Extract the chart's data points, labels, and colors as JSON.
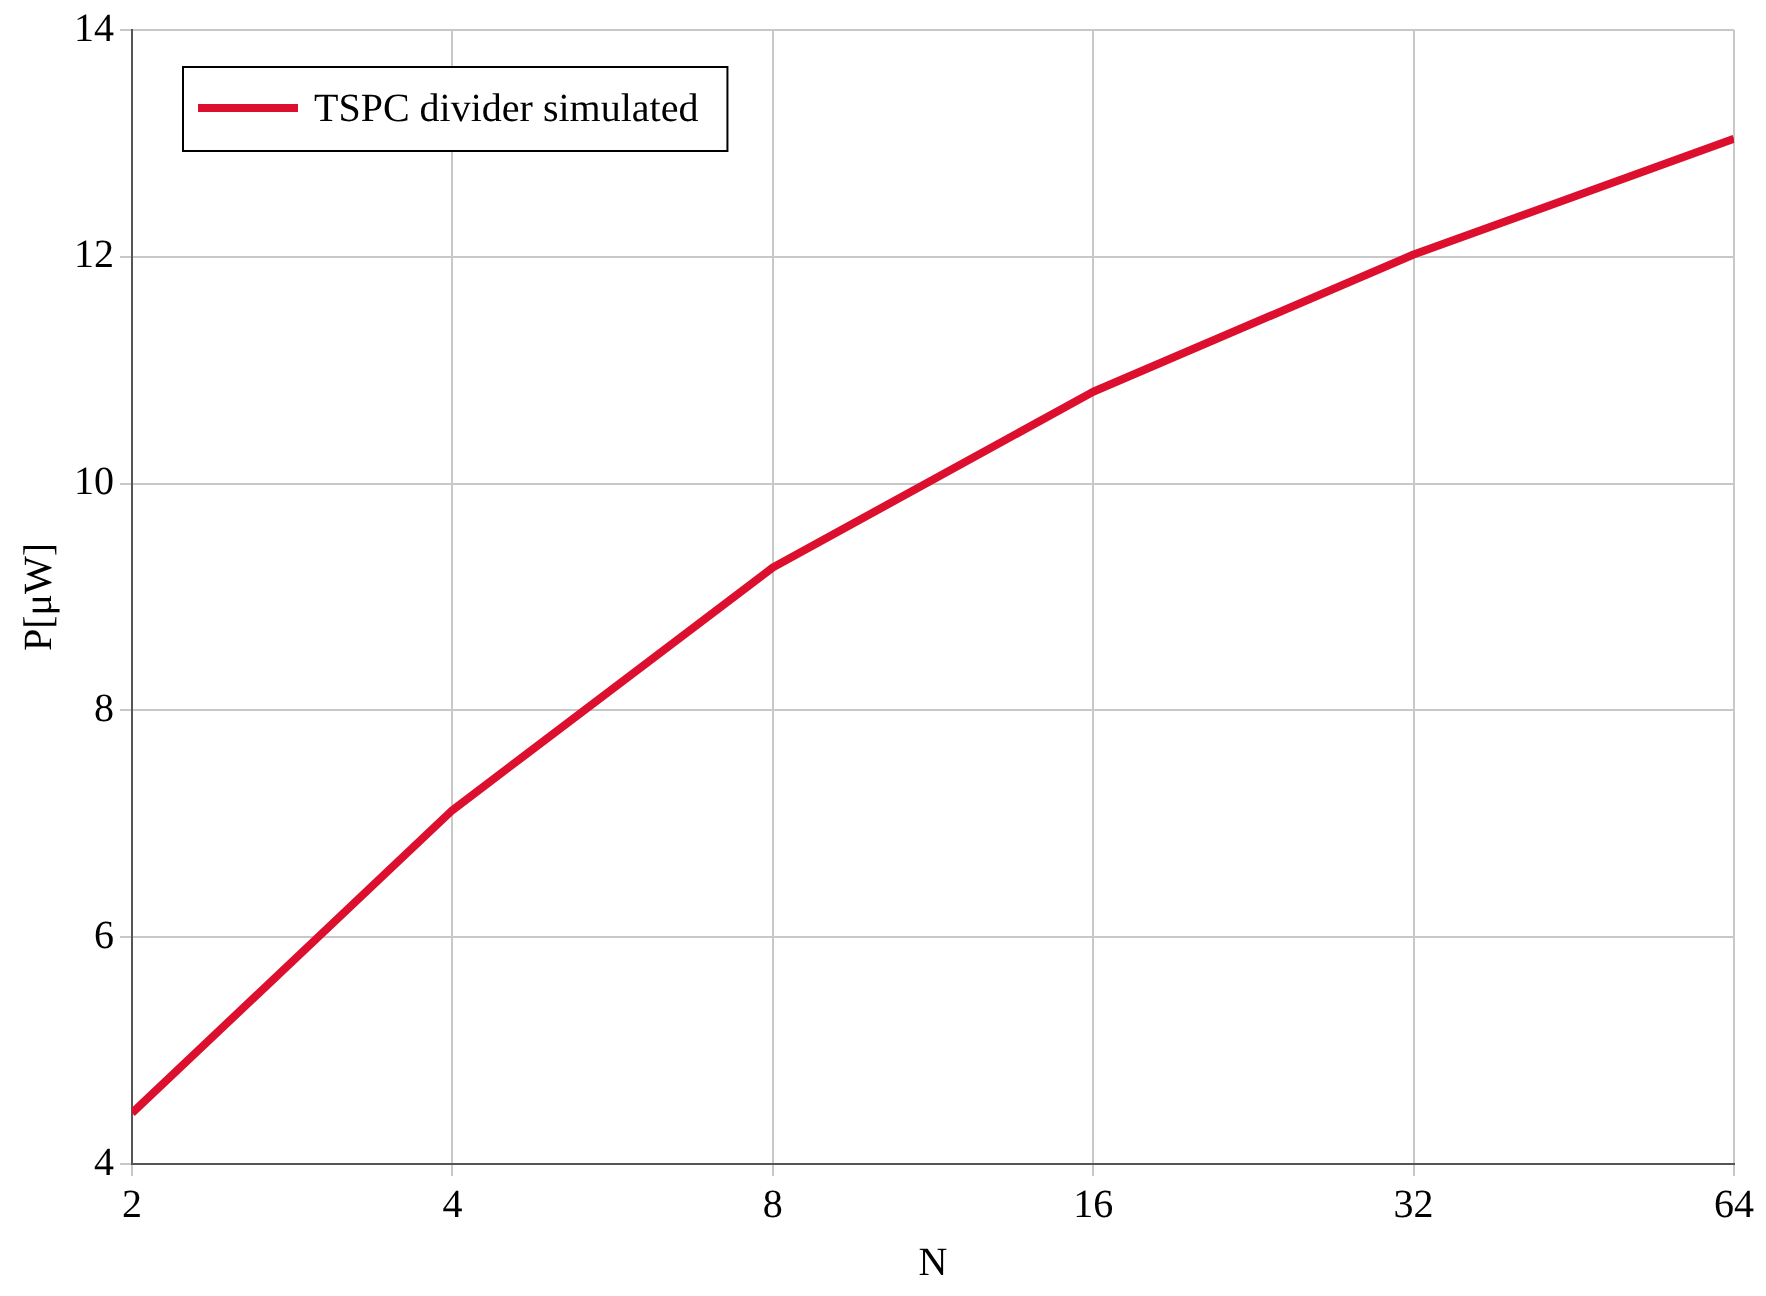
{
  "chart_data": {
    "type": "line",
    "xlabel": "N",
    "ylabel": "P[μW]",
    "x": [
      2,
      4,
      8,
      16,
      32,
      64
    ],
    "series": [
      {
        "name": "TSPC divider simulated",
        "color": "#dc0f2f",
        "values": [
          4.45,
          7.12,
          9.26,
          10.81,
          12.02,
          13.04
        ]
      }
    ],
    "xlim": [
      2,
      64
    ],
    "xticks": [
      2,
      4,
      8,
      16,
      32,
      64
    ],
    "ylim": [
      4,
      14
    ],
    "yticks": [
      4,
      6,
      8,
      10,
      12,
      14
    ],
    "log": "x",
    "grid": true,
    "legend": "top left",
    "marker": "none",
    "line_style": "solid"
  }
}
